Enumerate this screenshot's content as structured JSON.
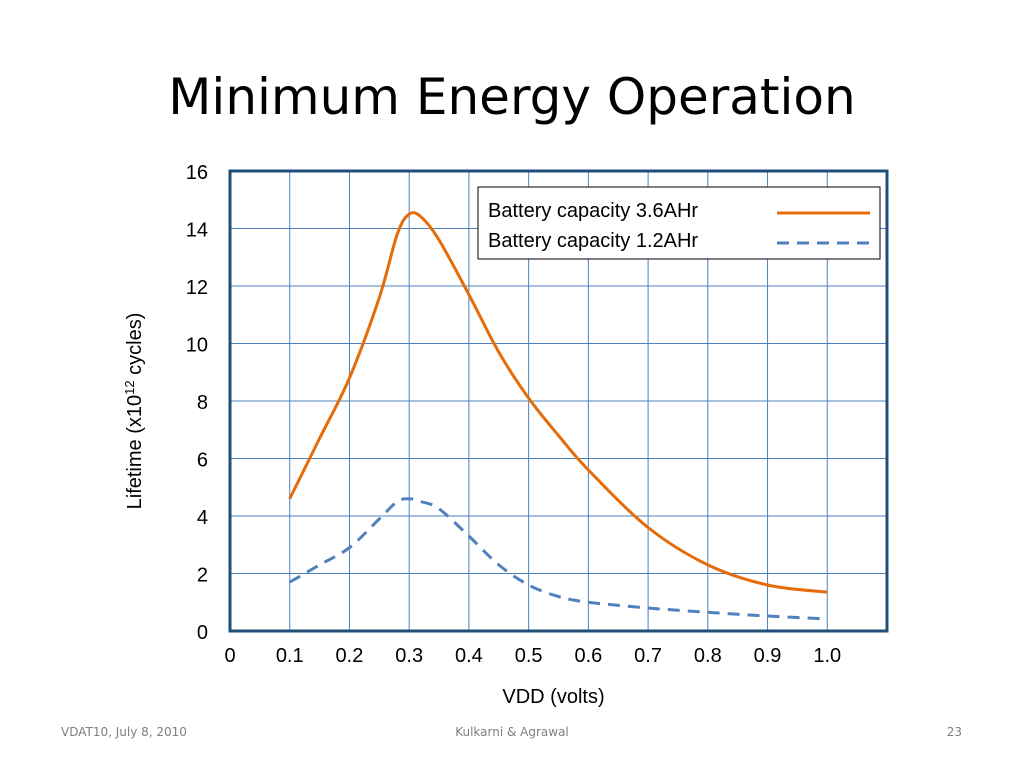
{
  "slide": {
    "title": "Minimum Energy Operation",
    "footer_left": "VDAT10, July 8, 2010",
    "footer_center": "Kulkarni & Agrawal",
    "footer_right": "23"
  },
  "chart_data": {
    "type": "line",
    "xlabel": "VDD (volts)",
    "ylabel": "Lifetime (x10¹² cycles)",
    "ylabel_parts": {
      "before": "Lifetime (x10",
      "sup": "12",
      "after": " cycles)"
    },
    "xlim": [
      0,
      1.1
    ],
    "ylim": [
      0,
      16
    ],
    "grid": true,
    "legend_position": "top-right",
    "x_ticks": [
      {
        "value": 0,
        "label": "0"
      },
      {
        "value": 0.1,
        "label": "0.1"
      },
      {
        "value": 0.2,
        "label": "0.2"
      },
      {
        "value": 0.3,
        "label": "0.3"
      },
      {
        "value": 0.4,
        "label": "0.4"
      },
      {
        "value": 0.5,
        "label": "0.5"
      },
      {
        "value": 0.6,
        "label": "0.6"
      },
      {
        "value": 0.7,
        "label": "0.7"
      },
      {
        "value": 0.8,
        "label": "0.8"
      },
      {
        "value": 0.9,
        "label": "0.9"
      },
      {
        "value": 1.0,
        "label": "1.0"
      }
    ],
    "y_ticks": [
      {
        "value": 0,
        "label": "0"
      },
      {
        "value": 2,
        "label": "2"
      },
      {
        "value": 4,
        "label": "4"
      },
      {
        "value": 6,
        "label": "6"
      },
      {
        "value": 8,
        "label": "8"
      },
      {
        "value": 10,
        "label": "10"
      },
      {
        "value": 12,
        "label": "12"
      },
      {
        "value": 14,
        "label": "14"
      },
      {
        "value": 16,
        "label": "16"
      }
    ],
    "series": [
      {
        "name": "Battery capacity 3.6AHr",
        "color": "#e46c0a",
        "style": "solid",
        "x": [
          0.1,
          0.15,
          0.2,
          0.25,
          0.28,
          0.3,
          0.32,
          0.35,
          0.4,
          0.45,
          0.5,
          0.55,
          0.6,
          0.7,
          0.8,
          0.9,
          1.0
        ],
        "y": [
          4.6,
          6.7,
          8.8,
          11.6,
          13.8,
          14.5,
          14.4,
          13.6,
          11.7,
          9.7,
          8.1,
          6.8,
          5.6,
          3.6,
          2.3,
          1.6,
          1.35
        ]
      },
      {
        "name": "Battery capacity 1.2AHr",
        "color": "#4f81bd",
        "style": "dashed",
        "x": [
          0.1,
          0.15,
          0.2,
          0.25,
          0.28,
          0.3,
          0.32,
          0.35,
          0.4,
          0.45,
          0.5,
          0.55,
          0.6,
          0.7,
          0.8,
          0.9,
          1.0
        ],
        "y": [
          1.7,
          2.3,
          2.9,
          3.9,
          4.5,
          4.6,
          4.5,
          4.25,
          3.3,
          2.3,
          1.6,
          1.2,
          1.0,
          0.8,
          0.65,
          0.52,
          0.42
        ]
      }
    ]
  }
}
